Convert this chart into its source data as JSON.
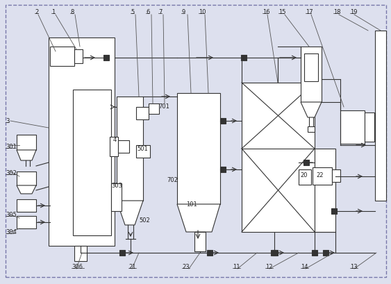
{
  "bg_color": "#dde0ee",
  "line_color": "#333333",
  "lw": 0.8,
  "fig_width": 5.63,
  "fig_height": 4.1,
  "dpi": 100
}
